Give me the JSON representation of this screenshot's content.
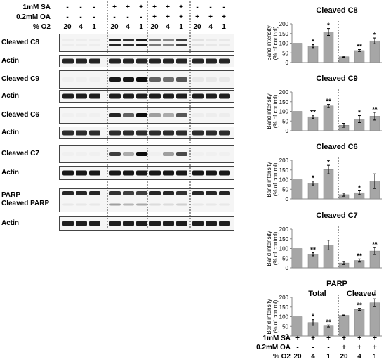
{
  "treatment_header": {
    "rows": [
      {
        "label": "1mM SA",
        "values": [
          "-",
          "-",
          "-",
          "+",
          "+",
          "+",
          "+",
          "+",
          "+",
          "-",
          "-",
          "-"
        ]
      },
      {
        "label": "0.2mM OA",
        "values": [
          "-",
          "-",
          "-",
          "-",
          "-",
          "-",
          "+",
          "+",
          "+",
          "+",
          "+",
          "+"
        ]
      },
      {
        "label": "% O2",
        "values": [
          "20",
          "4",
          "1",
          "20",
          "4",
          "1",
          "20",
          "4",
          "1",
          "20",
          "4",
          "1"
        ]
      }
    ]
  },
  "blots": [
    {
      "label": "Cleaved C8",
      "pattern": [
        0.03,
        0.03,
        0.03,
        0.85,
        0.8,
        0.9,
        0.5,
        0.45,
        0.75,
        0.08,
        0.05,
        0.05
      ],
      "double": true
    },
    {
      "label": "Actin",
      "pattern": [
        0.85,
        0.85,
        0.85,
        0.85,
        0.85,
        0.85,
        0.85,
        0.85,
        0.85,
        0.85,
        0.85,
        0.85
      ]
    },
    {
      "label": "Cleaved C9",
      "pattern": [
        0.02,
        0.02,
        0.02,
        0.9,
        0.9,
        0.95,
        0.6,
        0.55,
        0.65,
        0.05,
        0.05,
        0.05
      ]
    },
    {
      "label": "Actin",
      "pattern": [
        0.88,
        0.88,
        0.88,
        0.88,
        0.88,
        0.88,
        0.88,
        0.88,
        0.88,
        0.88,
        0.88,
        0.88
      ]
    },
    {
      "label": "Cleaved C6",
      "pattern": [
        0.02,
        0.02,
        0.02,
        0.85,
        0.6,
        0.95,
        0.35,
        0.3,
        0.65,
        0.03,
        0.03,
        0.03
      ]
    },
    {
      "label": "Actin",
      "pattern": [
        0.82,
        0.82,
        0.82,
        0.82,
        0.82,
        0.82,
        0.82,
        0.82,
        0.82,
        0.82,
        0.82,
        0.82
      ]
    },
    {
      "label": "Cleaved C7",
      "pattern": [
        0.02,
        0.02,
        0.02,
        0.75,
        0.3,
        0.95,
        0.02,
        0.35,
        0.7,
        0.02,
        0.02,
        0.02
      ]
    },
    {
      "label": "Actin",
      "pattern": [
        0.9,
        0.9,
        0.9,
        0.9,
        0.9,
        0.9,
        0.9,
        0.9,
        0.9,
        0.9,
        0.9,
        0.9
      ]
    },
    {
      "label": "PARP",
      "label2": "Cleaved PARP",
      "pattern": [
        0.85,
        0.85,
        0.85,
        0.8,
        0.75,
        0.75,
        0.85,
        0.85,
        0.8,
        0.85,
        0.85,
        0.85
      ],
      "pattern2": [
        0.05,
        0.05,
        0.05,
        0.35,
        0.25,
        0.3,
        0.1,
        0.1,
        0.15,
        0.05,
        0.05,
        0.05
      ]
    },
    {
      "label": "Actin",
      "pattern": [
        0.88,
        0.88,
        0.88,
        0.88,
        0.88,
        0.88,
        0.88,
        0.88,
        0.88,
        0.88,
        0.88,
        0.88
      ]
    }
  ],
  "chart_data": [
    {
      "type": "bar",
      "title": "Cleaved C8",
      "ylabel": "Band intensity (% of control)",
      "ylim": [
        0,
        200
      ],
      "yticks": [
        0,
        50,
        100,
        150,
        200
      ],
      "values": [
        100,
        85,
        158,
        30,
        62,
        112
      ],
      "errors": [
        0,
        8,
        18,
        3,
        5,
        15
      ],
      "sig": [
        "",
        "*",
        "*",
        "",
        "**",
        "*"
      ]
    },
    {
      "type": "bar",
      "title": "Cleaved C9",
      "ylabel": "Band intensity (% of control)",
      "ylim": [
        0,
        200
      ],
      "yticks": [
        0,
        50,
        100,
        150,
        200
      ],
      "values": [
        100,
        72,
        128,
        28,
        60,
        75
      ],
      "errors": [
        0,
        8,
        8,
        10,
        18,
        20
      ],
      "sig": [
        "",
        "**",
        "**",
        "",
        "*",
        "**"
      ]
    },
    {
      "type": "bar",
      "title": "Cleaved C6",
      "ylabel": "Band intensity (% of control)",
      "ylim": [
        0,
        200
      ],
      "yticks": [
        0,
        50,
        100,
        150,
        200
      ],
      "values": [
        100,
        82,
        152,
        22,
        32,
        92
      ],
      "errors": [
        0,
        10,
        22,
        8,
        10,
        38
      ],
      "sig": [
        "",
        "*",
        "*",
        "",
        "*",
        ""
      ]
    },
    {
      "type": "bar",
      "title": "Cleaved C7",
      "ylabel": "Band intensity (% of control)",
      "ylim": [
        0,
        200
      ],
      "yticks": [
        0,
        50,
        100,
        150,
        200
      ],
      "values": [
        100,
        70,
        118,
        25,
        38,
        87
      ],
      "errors": [
        0,
        8,
        25,
        8,
        8,
        18
      ],
      "sig": [
        "",
        "**",
        "",
        "",
        "**",
        "**"
      ]
    },
    {
      "type": "bar",
      "title": "PARP",
      "subtitles": [
        "Total",
        "Cleaved"
      ],
      "ylabel": "Band intensity (% of control)",
      "ylim": [
        0,
        200
      ],
      "yticks": [
        0,
        50,
        100,
        150,
        200
      ],
      "values": [
        100,
        70,
        52,
        107,
        138,
        172
      ],
      "errors": [
        0,
        15,
        5,
        2,
        5,
        20
      ],
      "sig": [
        "",
        "*",
        "**",
        "",
        "**",
        "*"
      ]
    }
  ],
  "bottom_table": {
    "rows": [
      {
        "label": "1mM SA",
        "values": [
          "+",
          "+",
          "+",
          "+",
          "+",
          "+"
        ]
      },
      {
        "label": "0.2mM OA",
        "values": [
          "-",
          "-",
          "-",
          "+",
          "+",
          "+"
        ]
      },
      {
        "label": "% O2",
        "values": [
          "20",
          "4",
          "1",
          "20",
          "4",
          "1"
        ]
      }
    ]
  }
}
